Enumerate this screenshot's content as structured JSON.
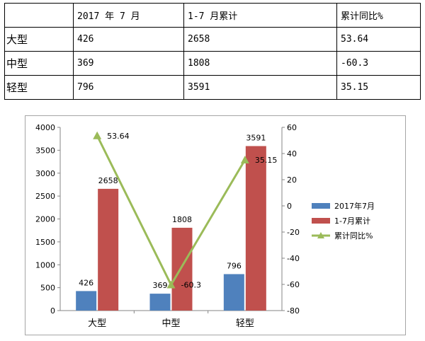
{
  "table": {
    "headers": [
      "",
      "2017 年 7 月",
      "1-7 月累计",
      "累计同比%"
    ],
    "rows": [
      [
        "大型",
        "426",
        "2658",
        "53.64"
      ],
      [
        "中型",
        "369",
        "1808",
        "-60.3"
      ],
      [
        "轻型",
        "796",
        "3591",
        "35.15"
      ]
    ]
  },
  "chart_data": {
    "type": "bar",
    "categories": [
      "大型",
      "中型",
      "轻型"
    ],
    "series": [
      {
        "name": "2017年7月",
        "type": "bar",
        "axis": "left",
        "color": "#4f81bd",
        "values": [
          426,
          369,
          796
        ],
        "labels": [
          "426",
          "369",
          "796"
        ]
      },
      {
        "name": "1-7月累计",
        "type": "bar",
        "axis": "left",
        "color": "#c0504d",
        "values": [
          2658,
          1808,
          3591
        ],
        "labels": [
          "2658",
          "1808",
          "3591"
        ]
      },
      {
        "name": "累计同比%",
        "type": "line",
        "axis": "right",
        "color": "#9bbb59",
        "values": [
          53.64,
          -60.3,
          35.15
        ],
        "labels": [
          "53.64",
          "-60.3",
          "35.15"
        ]
      }
    ],
    "y_left": {
      "min": 0,
      "max": 4000,
      "ticks": [
        0,
        500,
        1000,
        1500,
        2000,
        2500,
        3000,
        3500,
        4000
      ]
    },
    "y_right": {
      "min": -80,
      "max": 60,
      "ticks": [
        -80,
        -60,
        -40,
        -20,
        0,
        20,
        40,
        60
      ]
    },
    "grid": false,
    "legend": "right"
  }
}
